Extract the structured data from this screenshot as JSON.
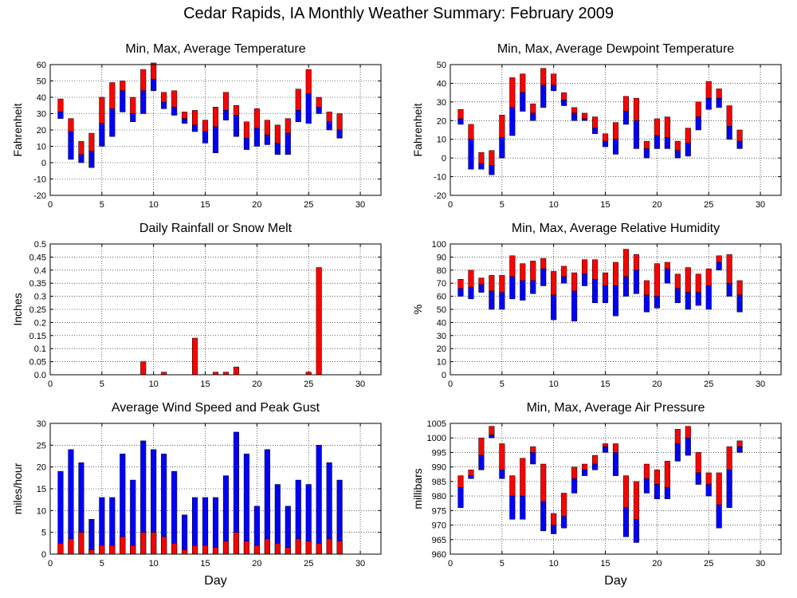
{
  "page_title": "Cedar Rapids, IA Monthly Weather Summary: February 2009",
  "chart_data": [
    {
      "id": "temperature",
      "type": "bar",
      "title": "Min, Max, Average Temperature",
      "xlabel": "",
      "ylabel": "Fahrenheit",
      "xlim": [
        0,
        32
      ],
      "ylim": [
        -20,
        60
      ],
      "yticks": [
        -20,
        -10,
        0,
        10,
        20,
        30,
        40,
        50,
        60
      ],
      "xticks": [
        0,
        5,
        10,
        15,
        20,
        25,
        30
      ],
      "grid": true,
      "colors": {
        "upper": "#ff0000",
        "lower": "#0000ff"
      },
      "days": [
        1,
        2,
        3,
        4,
        5,
        6,
        7,
        8,
        9,
        10,
        11,
        12,
        13,
        14,
        15,
        16,
        17,
        18,
        19,
        20,
        21,
        22,
        23,
        24,
        25,
        26,
        27,
        28
      ],
      "min": [
        27,
        2,
        0,
        -3,
        10,
        16,
        31,
        25,
        30,
        44,
        33,
        29,
        24,
        19,
        12,
        6,
        26,
        16,
        8,
        10,
        11,
        5,
        5,
        25,
        24,
        30,
        20,
        15
      ],
      "avg": [
        31,
        19,
        5,
        7,
        24,
        33,
        44,
        30,
        44,
        51,
        37,
        34,
        27,
        23,
        19,
        22,
        32,
        29,
        15,
        21,
        17,
        12,
        18,
        32,
        42,
        34,
        25,
        20
      ],
      "max": [
        39,
        27,
        13,
        18,
        40,
        49,
        50,
        40,
        57,
        61,
        43,
        44,
        31,
        32,
        26,
        34,
        43,
        35,
        25,
        33,
        26,
        23,
        27,
        45,
        57,
        40,
        31,
        30
      ]
    },
    {
      "id": "dewpoint",
      "type": "bar",
      "title": "Min, Max, Average Dewpoint Temperature",
      "xlabel": "",
      "ylabel": "Fahrenheit",
      "xlim": [
        0,
        32
      ],
      "ylim": [
        -20,
        50
      ],
      "yticks": [
        -20,
        -10,
        0,
        10,
        20,
        30,
        40,
        50
      ],
      "xticks": [
        0,
        5,
        10,
        15,
        20,
        25,
        30
      ],
      "grid": true,
      "colors": {
        "upper": "#ff0000",
        "lower": "#0000ff"
      },
      "days": [
        1,
        2,
        3,
        4,
        5,
        6,
        7,
        8,
        9,
        10,
        11,
        12,
        13,
        14,
        15,
        16,
        17,
        18,
        19,
        20,
        21,
        22,
        23,
        24,
        25,
        26,
        27,
        28
      ],
      "min": [
        18,
        -6,
        -6,
        -9,
        0,
        12,
        25,
        20,
        27,
        36,
        28,
        20,
        20,
        13,
        6,
        2,
        18,
        5,
        0,
        5,
        5,
        0,
        1,
        15,
        26,
        27,
        10,
        5
      ],
      "avg": [
        21,
        10,
        -3,
        -4,
        11,
        27,
        35,
        24,
        39,
        39,
        31,
        24,
        21,
        16,
        9,
        10,
        25,
        20,
        5,
        12,
        11,
        4,
        8,
        22,
        32,
        32,
        17,
        9
      ],
      "max": [
        26,
        18,
        3,
        4,
        23,
        43,
        45,
        29,
        48,
        45,
        35,
        27,
        24,
        22,
        13,
        19,
        33,
        32,
        9,
        21,
        22,
        9,
        16,
        30,
        41,
        37,
        28,
        15
      ]
    },
    {
      "id": "rainfall",
      "type": "bar",
      "title": "Daily Rainfall or Snow Melt",
      "xlabel": "",
      "ylabel": "Inches",
      "xlim": [
        0,
        32
      ],
      "ylim": [
        0,
        0.5
      ],
      "yticks": [
        0.0,
        0.05,
        0.1,
        0.15,
        0.2,
        0.25,
        0.3,
        0.35,
        0.4,
        0.45,
        0.5
      ],
      "ytick_labels": [
        "0.0",
        "0.05",
        "0.1",
        "0.15",
        "0.2",
        "0.25",
        "0.3",
        "0.35",
        "0.4",
        "0.45",
        "0.5"
      ],
      "xticks": [
        0,
        5,
        10,
        15,
        20,
        25,
        30
      ],
      "grid": true,
      "colors": {
        "bar": "#ff0000"
      },
      "days": [
        1,
        2,
        3,
        4,
        5,
        6,
        7,
        8,
        9,
        10,
        11,
        12,
        13,
        14,
        15,
        16,
        17,
        18,
        19,
        20,
        21,
        22,
        23,
        24,
        25,
        26,
        27,
        28
      ],
      "values": [
        0,
        0,
        0,
        0,
        0,
        0,
        0,
        0,
        0.05,
        0,
        0.01,
        0,
        0,
        0.14,
        0,
        0.01,
        0.01,
        0.03,
        0,
        0,
        0,
        0,
        0,
        0,
        0.01,
        0.41,
        0,
        0
      ]
    },
    {
      "id": "humidity",
      "type": "bar",
      "title": "Min, Max, Average Relative Humidity",
      "xlabel": "",
      "ylabel": "%",
      "xlim": [
        0,
        32
      ],
      "ylim": [
        0,
        100
      ],
      "yticks": [
        0,
        10,
        20,
        30,
        40,
        50,
        60,
        70,
        80,
        90,
        100
      ],
      "xticks": [
        0,
        5,
        10,
        15,
        20,
        25,
        30
      ],
      "grid": true,
      "colors": {
        "upper": "#ff0000",
        "lower": "#0000ff"
      },
      "days": [
        1,
        2,
        3,
        4,
        5,
        6,
        7,
        8,
        9,
        10,
        11,
        12,
        13,
        14,
        15,
        16,
        17,
        18,
        19,
        20,
        21,
        22,
        23,
        24,
        25,
        26,
        27,
        28
      ],
      "min": [
        60,
        58,
        63,
        50,
        50,
        58,
        57,
        62,
        68,
        42,
        70,
        41,
        68,
        55,
        55,
        45,
        60,
        62,
        48,
        51,
        70,
        55,
        50,
        53,
        50,
        80,
        60,
        48
      ],
      "avg": [
        66,
        67,
        69,
        64,
        63,
        75,
        72,
        72,
        81,
        61,
        75,
        64,
        77,
        73,
        68,
        68,
        75,
        80,
        61,
        60,
        81,
        66,
        63,
        63,
        68,
        86,
        70,
        61
      ],
      "max": [
        73,
        80,
        74,
        76,
        76,
        91,
        85,
        87,
        89,
        79,
        83,
        78,
        88,
        88,
        78,
        86,
        96,
        92,
        72,
        85,
        86,
        77,
        82,
        77,
        81,
        91,
        92,
        72
      ]
    },
    {
      "id": "wind",
      "type": "bar",
      "title": "Average Wind Speed and Peak Gust",
      "xlabel": "Day",
      "ylabel": "miles/hour",
      "xlim": [
        0,
        32
      ],
      "ylim": [
        0,
        30
      ],
      "yticks": [
        0,
        5,
        10,
        15,
        20,
        25,
        30
      ],
      "xticks": [
        0,
        5,
        10,
        15,
        20,
        25,
        30
      ],
      "grid": true,
      "colors": {
        "average": "#ff0000",
        "gust": "#0000ff"
      },
      "days": [
        1,
        2,
        3,
        4,
        5,
        6,
        7,
        8,
        9,
        10,
        11,
        12,
        13,
        14,
        15,
        16,
        17,
        18,
        19,
        20,
        21,
        22,
        23,
        24,
        25,
        26,
        27,
        28
      ],
      "average": [
        2.5,
        3.5,
        5,
        1,
        2,
        2,
        4,
        2,
        5,
        5,
        4,
        2.5,
        1,
        2,
        2,
        1.5,
        3,
        5,
        3,
        2,
        3.5,
        2.5,
        1.5,
        3.5,
        3,
        2.5,
        3.5,
        3
      ],
      "gust": [
        19,
        24,
        21,
        8,
        13,
        13,
        23,
        17,
        26,
        24,
        23,
        19,
        9,
        13,
        13,
        13,
        18,
        28,
        23,
        11,
        24,
        16,
        11,
        17,
        16,
        25,
        21,
        17
      ]
    },
    {
      "id": "pressure",
      "type": "bar",
      "title": "Min, Max, Average Air Pressure",
      "xlabel": "Day",
      "ylabel": "millibars",
      "xlim": [
        0,
        32
      ],
      "ylim": [
        960,
        1005
      ],
      "yticks": [
        960,
        965,
        970,
        975,
        980,
        985,
        990,
        995,
        1000,
        1005
      ],
      "xticks": [
        0,
        5,
        10,
        15,
        20,
        25,
        30
      ],
      "grid": true,
      "colors": {
        "upper": "#ff0000",
        "lower": "#0000ff"
      },
      "days": [
        1,
        2,
        3,
        4,
        5,
        6,
        7,
        8,
        9,
        10,
        11,
        12,
        13,
        14,
        15,
        16,
        17,
        18,
        19,
        20,
        21,
        22,
        23,
        24,
        25,
        26,
        27,
        28
      ],
      "min": [
        976,
        986,
        989,
        1000,
        986,
        972,
        972,
        991,
        968,
        967,
        969,
        981,
        987,
        989,
        995,
        987,
        966,
        964,
        981,
        979,
        979,
        992,
        994,
        984,
        980,
        969,
        976,
        995
      ],
      "avg": [
        983,
        987,
        994,
        1001,
        989,
        980,
        980,
        995,
        978,
        970,
        973,
        986,
        989,
        991,
        997,
        995,
        976,
        972,
        986,
        984,
        983,
        998,
        1000,
        988,
        984,
        977,
        989,
        997
      ],
      "max": [
        987,
        989,
        1000,
        1004,
        998,
        987,
        993,
        997,
        991,
        974,
        981,
        990,
        991,
        994,
        998,
        998,
        987,
        985,
        991,
        989,
        992,
        1003,
        1004,
        995,
        988,
        988,
        997,
        999
      ]
    }
  ]
}
